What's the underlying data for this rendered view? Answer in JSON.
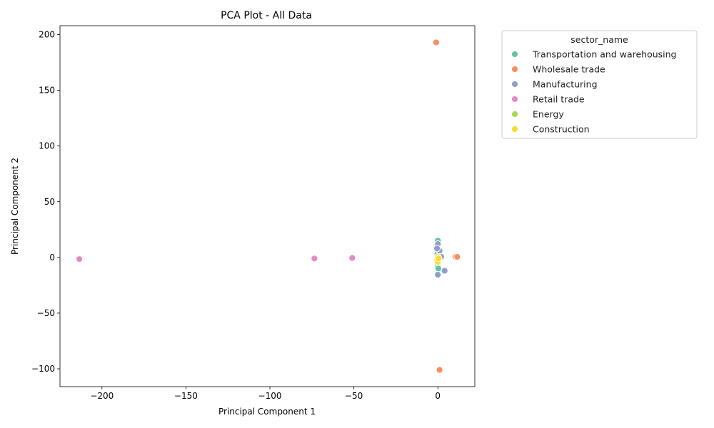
{
  "chart_data": {
    "type": "scatter",
    "title": "PCA Plot - All Data",
    "xlabel": "Principal Component 1",
    "ylabel": "Principal Component 2",
    "xlim": [
      -225,
      22
    ],
    "ylim": [
      -116,
      208
    ],
    "xticks": [
      -200,
      -150,
      -100,
      -50,
      0
    ],
    "yticks": [
      -100,
      -50,
      0,
      50,
      100,
      150,
      200
    ],
    "xtick_labels": [
      "−200",
      "−150",
      "−100",
      "−50",
      "0"
    ],
    "ytick_labels": [
      "−100",
      "−50",
      "0",
      "50",
      "100",
      "150",
      "200"
    ],
    "grid": false,
    "legend": {
      "title": "sector_name",
      "placement": "outside-upper-right"
    },
    "series": [
      {
        "name": "Transportation and warehousing",
        "color": "#66c2a5",
        "points": [
          [
            0,
            15
          ],
          [
            0,
            -5
          ],
          [
            0,
            -8
          ],
          [
            0.3,
            -10
          ],
          [
            0.5,
            2
          ],
          [
            -0.3,
            3
          ]
        ]
      },
      {
        "name": "Wholesale trade",
        "color": "#fc8d62",
        "points": [
          [
            -1,
            193
          ],
          [
            1,
            -101
          ],
          [
            10.5,
            0.5
          ],
          [
            11.5,
            0.5
          ],
          [
            1.5,
            0
          ],
          [
            0.3,
            -3
          ]
        ]
      },
      {
        "name": "Manufacturing",
        "color": "#8da0cb",
        "points": [
          [
            0,
            12
          ],
          [
            1,
            6
          ],
          [
            4,
            -12
          ],
          [
            0,
            -15.5
          ],
          [
            2,
            0.5
          ],
          [
            0.5,
            -1
          ],
          [
            -0.5,
            8
          ]
        ]
      },
      {
        "name": "Retail trade",
        "color": "#e78ac3",
        "points": [
          [
            -213.5,
            -1.5
          ],
          [
            -73.5,
            -1
          ],
          [
            -51,
            -0.5
          ]
        ]
      },
      {
        "name": "Energy",
        "color": "#a6d854",
        "points": [
          [
            0,
            0.5
          ]
        ]
      },
      {
        "name": "Construction",
        "color": "#ffd92f",
        "points": [
          [
            0,
            0.5
          ],
          [
            -0.5,
            -2.5
          ],
          [
            0,
            -4
          ],
          [
            0.5,
            -1
          ]
        ]
      }
    ]
  }
}
